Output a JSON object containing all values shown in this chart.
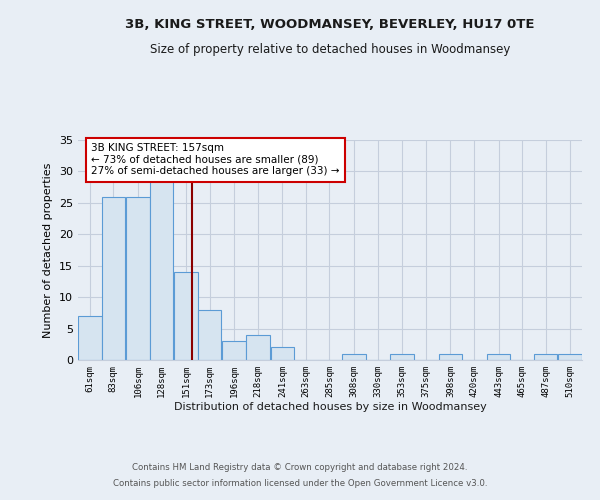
{
  "title1": "3B, KING STREET, WOODMANSEY, BEVERLEY, HU17 0TE",
  "title2": "Size of property relative to detached houses in Woodmansey",
  "xlabel": "Distribution of detached houses by size in Woodmansey",
  "ylabel": "Number of detached properties",
  "bins": [
    61,
    83,
    106,
    128,
    151,
    173,
    196,
    218,
    241,
    263,
    285,
    308,
    330,
    353,
    375,
    398,
    420,
    443,
    465,
    487,
    510
  ],
  "values": [
    7,
    26,
    26,
    29,
    14,
    8,
    3,
    4,
    2,
    0,
    0,
    1,
    0,
    1,
    0,
    1,
    0,
    1,
    0,
    1,
    1
  ],
  "bar_color": "#d6e4f0",
  "bar_edge_color": "#5b9bd5",
  "vline_x": 157,
  "vline_color": "#8b0000",
  "annotation_text": "3B KING STREET: 157sqm\n← 73% of detached houses are smaller (89)\n27% of semi-detached houses are larger (33) →",
  "annotation_box_color": "#ffffff",
  "annotation_box_edge": "#cc0000",
  "ylim": [
    0,
    35
  ],
  "yticks": [
    0,
    5,
    10,
    15,
    20,
    25,
    30,
    35
  ],
  "footer1": "Contains HM Land Registry data © Crown copyright and database right 2024.",
  "footer2": "Contains public sector information licensed under the Open Government Licence v3.0.",
  "bg_color": "#e8eef5",
  "plot_bg_color": "#e8eef5",
  "grid_color": "#c5cedc"
}
